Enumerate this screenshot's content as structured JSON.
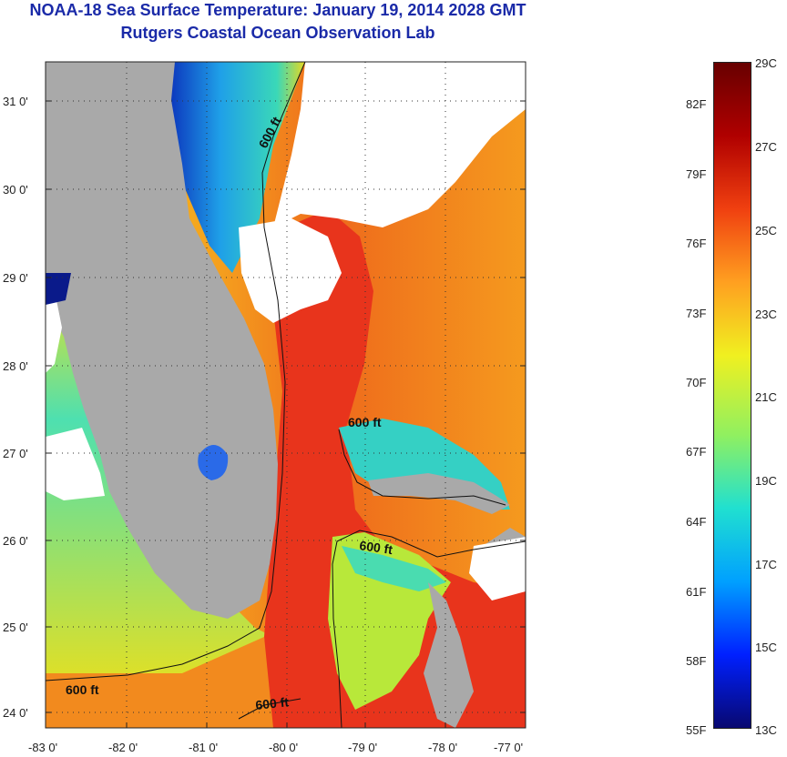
{
  "header": {
    "title": "NOAA-18 Sea Surface Temperature:  January 19, 2014 2028 GMT",
    "subtitle": "Rutgers Coastal Ocean Observation Lab"
  },
  "map": {
    "lat_ticks": [
      "31 0'",
      "30 0'",
      "29 0'",
      "28 0'",
      "27 0'",
      "26 0'",
      "25 0'",
      "24 0'"
    ],
    "lon_ticks": [
      "-83 0'",
      "-82 0'",
      "-81 0'",
      "-80 0'",
      "-79 0'",
      "-78 0'",
      "-77 0'"
    ],
    "contour_labels": [
      "600 ft",
      "600 ft",
      "600 ft",
      "600 ft",
      "600 ft"
    ],
    "colors": {
      "land": "#a9a9a9",
      "cloud": "#ffffff",
      "gulf_stream": "#e8301c",
      "warm": "#f59a1e",
      "mid": "#e9e41e",
      "cool": "#2fd6c0",
      "cold": "#1a36c8"
    }
  },
  "colorbar": {
    "celsius_labels": [
      "29C",
      "27C",
      "25C",
      "23C",
      "21C",
      "19C",
      "17C",
      "15C",
      "13C"
    ],
    "fahrenheit_labels": [
      "82F",
      "79F",
      "76F",
      "73F",
      "70F",
      "67F",
      "64F",
      "61F",
      "58F",
      "55F"
    ],
    "range_c": [
      13,
      29
    ],
    "colors": [
      "#080870",
      "#0020ff",
      "#00a0ff",
      "#20e0d0",
      "#90f060",
      "#f0f020",
      "#ffa020",
      "#f04010",
      "#b00000",
      "#680000"
    ]
  }
}
